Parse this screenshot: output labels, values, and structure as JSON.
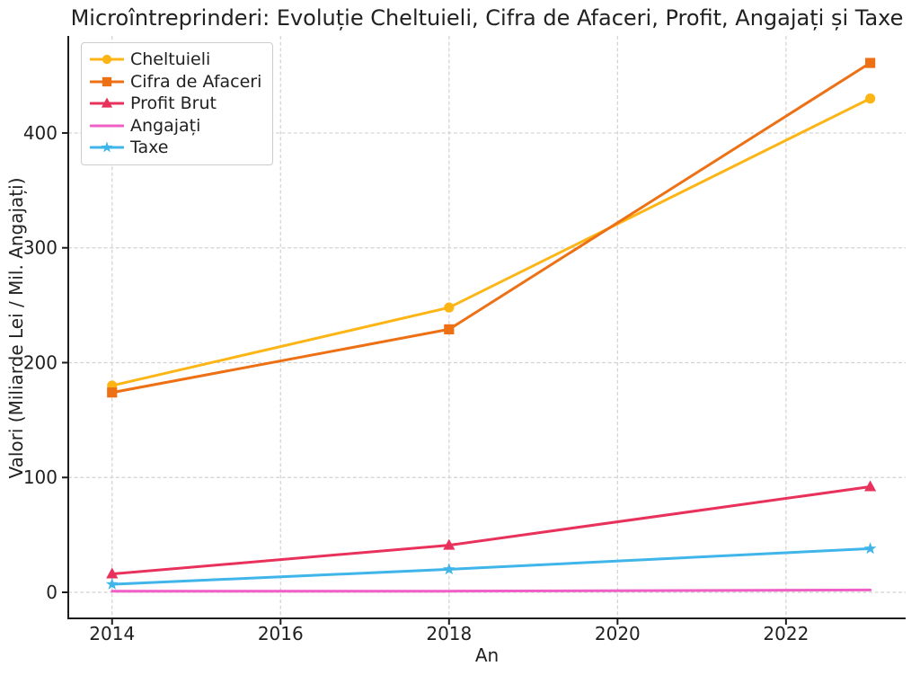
{
  "chart_data": {
    "type": "line",
    "title": "Microîntreprinderi: Evoluție Cheltuieli, Cifra de Afaceri, Profit, Angajați și Taxe",
    "xlabel": "An",
    "ylabel": "Valori (Miliarde Lei / Mil. Angajați)",
    "x": [
      2014,
      2018,
      2023
    ],
    "series": [
      {
        "name": "Cheltuieli",
        "values": [
          180,
          248,
          430
        ],
        "color": "#FDB515",
        "marker": "circle"
      },
      {
        "name": "Cifra de Afaceri",
        "values": [
          174,
          229,
          461
        ],
        "color": "#ED7014",
        "marker": "square"
      },
      {
        "name": "Profit Brut",
        "values": [
          16,
          41,
          92
        ],
        "color": "#E8325C",
        "marker": "triangle"
      },
      {
        "name": "Angajați",
        "values": [
          1,
          1,
          2
        ],
        "color": "#F05FC5",
        "marker": "none"
      },
      {
        "name": "Taxe",
        "values": [
          7,
          20,
          38
        ],
        "color": "#3FB5E9",
        "marker": "star"
      }
    ],
    "xticks": [
      2014,
      2016,
      2018,
      2020,
      2022
    ],
    "yticks": [
      0,
      100,
      200,
      300,
      400
    ],
    "xlim": [
      2013.48,
      2023.42
    ],
    "ylim": [
      -22.7,
      484.5
    ],
    "grid": true,
    "grid_color": "#d2d2d2",
    "spine_color": "#1c1c1c",
    "text_color": "#1f1f1f",
    "legend_position": "upper-left"
  }
}
